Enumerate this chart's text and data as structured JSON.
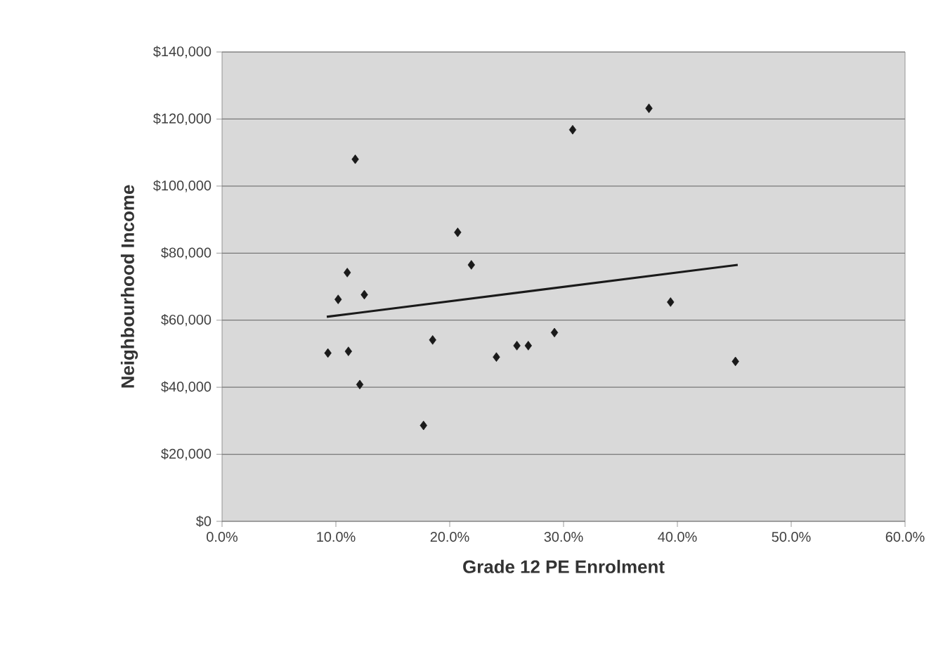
{
  "chart_data": {
    "type": "scatter",
    "xlabel": "Grade 12 PE Enrolment",
    "ylabel": "Neighbourhood Income",
    "xlim": [
      0,
      60
    ],
    "ylim": [
      0,
      140000
    ],
    "xticks": [
      {
        "value": 0,
        "label": "0.0%"
      },
      {
        "value": 10,
        "label": "10.0%"
      },
      {
        "value": 20,
        "label": "20.0%"
      },
      {
        "value": 30,
        "label": "30.0%"
      },
      {
        "value": 40,
        "label": "40.0%"
      },
      {
        "value": 50,
        "label": "50.0%"
      },
      {
        "value": 60,
        "label": "60.0%"
      }
    ],
    "yticks": [
      {
        "value": 0,
        "label": "$0"
      },
      {
        "value": 20000,
        "label": "$20,000"
      },
      {
        "value": 40000,
        "label": "$40,000"
      },
      {
        "value": 60000,
        "label": "$60,000"
      },
      {
        "value": 80000,
        "label": "$80,000"
      },
      {
        "value": 100000,
        "label": "$100,000"
      },
      {
        "value": 120000,
        "label": "$120,000"
      },
      {
        "value": 140000,
        "label": "$140,000"
      }
    ],
    "grid": "y",
    "series": [
      {
        "color": "#1a1a1a",
        "marker": "diamond",
        "x": [
          9.3,
          10.2,
          11.0,
          11.1,
          11.7,
          12.1,
          12.5,
          17.7,
          18.5,
          20.7,
          21.9,
          24.1,
          25.9,
          26.9,
          29.2,
          30.8,
          37.5,
          39.4,
          45.1
        ],
        "values": [
          50200,
          66200,
          74200,
          50700,
          108000,
          40800,
          67600,
          28600,
          54100,
          86200,
          76500,
          49000,
          52400,
          52400,
          56300,
          116800,
          123200,
          65400,
          47700
        ]
      },
      {
        "type": "line",
        "color": "#1a1a1a",
        "marker": "none",
        "line_style": "solid",
        "x": [
          9.2,
          45.3
        ],
        "values": [
          61000,
          76500
        ]
      }
    ]
  }
}
